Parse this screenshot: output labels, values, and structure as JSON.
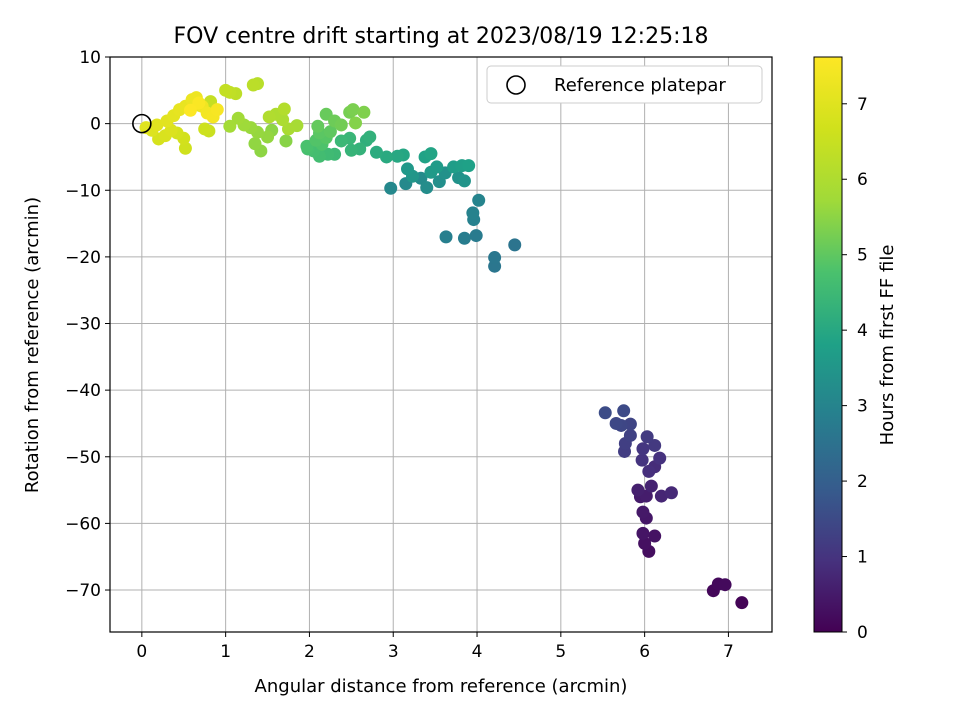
{
  "chart_data": {
    "type": "scatter",
    "title": "FOV centre drift starting at 2023/08/19 12:25:18",
    "xlabel": "Angular distance from reference (arcmin)",
    "ylabel": "Rotation from reference (arcmin)",
    "xlim": [
      -0.38,
      7.52
    ],
    "ylim": [
      -76.3,
      10
    ],
    "xticks": [
      "0",
      "1",
      "2",
      "3",
      "4",
      "5",
      "6",
      "7"
    ],
    "yticks": [
      "10",
      "0",
      "−10",
      "−20",
      "−30",
      "−40",
      "−50",
      "−60",
      "−70"
    ],
    "grid": true,
    "legend": {
      "placement": "top-right",
      "entries": [
        "Reference platepar"
      ]
    },
    "reference_point": {
      "x": 0,
      "y": 0
    },
    "colorbar": {
      "label": "Hours from first FF file",
      "range": [
        0,
        7.62
      ],
      "ticks": [
        "0",
        "1",
        "2",
        "3",
        "4",
        "5",
        "6",
        "7"
      ],
      "colormap": "viridis"
    },
    "points": [
      {
        "x": 7.16,
        "y": -71.9,
        "c": 0.05
      },
      {
        "x": 6.82,
        "y": -70.1,
        "c": 0.12
      },
      {
        "x": 6.88,
        "y": -69.1,
        "c": 0.15
      },
      {
        "x": 6.96,
        "y": -69.2,
        "c": 0.18
      },
      {
        "x": 6.05,
        "y": -64.2,
        "c": 0.25
      },
      {
        "x": 6.0,
        "y": -63.0,
        "c": 0.3
      },
      {
        "x": 6.12,
        "y": -61.9,
        "c": 0.35
      },
      {
        "x": 5.98,
        "y": -61.5,
        "c": 0.38
      },
      {
        "x": 6.02,
        "y": -59.2,
        "c": 0.42
      },
      {
        "x": 5.98,
        "y": -58.3,
        "c": 0.46
      },
      {
        "x": 5.95,
        "y": -56.0,
        "c": 0.5
      },
      {
        "x": 6.02,
        "y": -55.9,
        "c": 0.55
      },
      {
        "x": 5.92,
        "y": -55.0,
        "c": 0.6
      },
      {
        "x": 6.08,
        "y": -54.4,
        "c": 0.65
      },
      {
        "x": 6.2,
        "y": -55.9,
        "c": 0.72
      },
      {
        "x": 6.32,
        "y": -55.4,
        "c": 0.78
      },
      {
        "x": 6.12,
        "y": -51.5,
        "c": 0.85
      },
      {
        "x": 6.05,
        "y": -52.2,
        "c": 0.9
      },
      {
        "x": 6.18,
        "y": -50.2,
        "c": 0.95
      },
      {
        "x": 5.97,
        "y": -50.5,
        "c": 1.0
      },
      {
        "x": 5.98,
        "y": -48.8,
        "c": 1.05
      },
      {
        "x": 6.12,
        "y": -48.3,
        "c": 1.1
      },
      {
        "x": 6.03,
        "y": -47.0,
        "c": 1.15
      },
      {
        "x": 5.76,
        "y": -49.2,
        "c": 1.2
      },
      {
        "x": 5.77,
        "y": -48.0,
        "c": 1.25
      },
      {
        "x": 5.83,
        "y": -46.8,
        "c": 1.3
      },
      {
        "x": 5.83,
        "y": -45.1,
        "c": 1.35
      },
      {
        "x": 5.72,
        "y": -45.3,
        "c": 1.4
      },
      {
        "x": 5.66,
        "y": -45.0,
        "c": 1.45
      },
      {
        "x": 5.75,
        "y": -43.1,
        "c": 1.5
      },
      {
        "x": 5.53,
        "y": -43.4,
        "c": 1.55
      },
      {
        "x": 4.45,
        "y": -18.2,
        "c": 2.55
      },
      {
        "x": 4.21,
        "y": -21.4,
        "c": 2.6
      },
      {
        "x": 4.21,
        "y": -20.1,
        "c": 2.65
      },
      {
        "x": 3.99,
        "y": -16.8,
        "c": 2.75
      },
      {
        "x": 3.85,
        "y": -17.2,
        "c": 2.8
      },
      {
        "x": 3.63,
        "y": -17.0,
        "c": 2.85
      },
      {
        "x": 3.96,
        "y": -14.4,
        "c": 2.9
      },
      {
        "x": 3.95,
        "y": -13.4,
        "c": 2.95
      },
      {
        "x": 4.02,
        "y": -11.5,
        "c": 3.0
      },
      {
        "x": 2.97,
        "y": -9.7,
        "c": 3.1
      },
      {
        "x": 3.15,
        "y": -9.0,
        "c": 3.15
      },
      {
        "x": 3.33,
        "y": -8.2,
        "c": 3.2
      },
      {
        "x": 3.4,
        "y": -9.6,
        "c": 3.25
      },
      {
        "x": 3.55,
        "y": -8.7,
        "c": 3.3
      },
      {
        "x": 3.62,
        "y": -7.4,
        "c": 3.35
      },
      {
        "x": 3.78,
        "y": -8.1,
        "c": 3.4
      },
      {
        "x": 3.85,
        "y": -8.6,
        "c": 3.45
      },
      {
        "x": 3.23,
        "y": -7.9,
        "c": 3.5
      },
      {
        "x": 3.17,
        "y": -6.8,
        "c": 3.55
      },
      {
        "x": 3.45,
        "y": -7.3,
        "c": 3.6
      },
      {
        "x": 3.52,
        "y": -6.5,
        "c": 3.65
      },
      {
        "x": 3.72,
        "y": -6.5,
        "c": 3.7
      },
      {
        "x": 3.82,
        "y": -6.3,
        "c": 3.75
      },
      {
        "x": 3.9,
        "y": -6.3,
        "c": 3.8
      },
      {
        "x": 3.38,
        "y": -5.0,
        "c": 3.85
      },
      {
        "x": 3.45,
        "y": -4.5,
        "c": 3.9
      },
      {
        "x": 3.12,
        "y": -4.7,
        "c": 3.95
      },
      {
        "x": 3.05,
        "y": -4.9,
        "c": 4.0
      },
      {
        "x": 2.92,
        "y": -5.0,
        "c": 4.05
      },
      {
        "x": 2.8,
        "y": -4.3,
        "c": 4.1
      },
      {
        "x": 2.68,
        "y": -2.5,
        "c": 4.2
      },
      {
        "x": 2.72,
        "y": -2.0,
        "c": 4.25
      },
      {
        "x": 2.6,
        "y": -3.8,
        "c": 4.3
      },
      {
        "x": 2.5,
        "y": -4.0,
        "c": 4.35
      },
      {
        "x": 2.48,
        "y": -2.2,
        "c": 4.4
      },
      {
        "x": 2.38,
        "y": -2.6,
        "c": 4.45
      },
      {
        "x": 2.3,
        "y": -4.6,
        "c": 4.5
      },
      {
        "x": 2.22,
        "y": -4.6,
        "c": 4.55
      },
      {
        "x": 2.12,
        "y": -4.9,
        "c": 4.6
      },
      {
        "x": 2.05,
        "y": -4.1,
        "c": 4.65
      },
      {
        "x": 1.98,
        "y": -3.8,
        "c": 4.7
      },
      {
        "x": 1.97,
        "y": -3.4,
        "c": 4.75
      },
      {
        "x": 2.15,
        "y": -3.1,
        "c": 4.8
      },
      {
        "x": 2.08,
        "y": -2.5,
        "c": 4.85
      },
      {
        "x": 2.2,
        "y": -2.1,
        "c": 4.9
      },
      {
        "x": 2.12,
        "y": -1.4,
        "c": 4.95
      },
      {
        "x": 2.25,
        "y": -1.2,
        "c": 5.0
      },
      {
        "x": 2.1,
        "y": -0.4,
        "c": 5.05
      },
      {
        "x": 2.2,
        "y": 1.4,
        "c": 5.1
      },
      {
        "x": 2.3,
        "y": 0.4,
        "c": 5.15
      },
      {
        "x": 2.38,
        "y": -0.2,
        "c": 5.2
      },
      {
        "x": 2.48,
        "y": 1.7,
        "c": 5.25
      },
      {
        "x": 2.52,
        "y": 2.1,
        "c": 5.3
      },
      {
        "x": 2.65,
        "y": 1.7,
        "c": 5.35
      },
      {
        "x": 2.55,
        "y": 0.1,
        "c": 5.4
      },
      {
        "x": 1.72,
        "y": -2.6,
        "c": 5.45
      },
      {
        "x": 1.55,
        "y": -1.0,
        "c": 5.5
      },
      {
        "x": 1.42,
        "y": -4.1,
        "c": 5.52
      },
      {
        "x": 1.35,
        "y": -3.0,
        "c": 5.55
      },
      {
        "x": 1.5,
        "y": -2.0,
        "c": 5.58
      },
      {
        "x": 1.38,
        "y": -1.3,
        "c": 5.6
      },
      {
        "x": 1.3,
        "y": -0.6,
        "c": 5.65
      },
      {
        "x": 1.22,
        "y": -0.2,
        "c": 5.7
      },
      {
        "x": 1.15,
        "y": 0.8,
        "c": 5.75
      },
      {
        "x": 1.05,
        "y": -0.4,
        "c": 5.8
      },
      {
        "x": 1.85,
        "y": -0.3,
        "c": 5.85
      },
      {
        "x": 1.75,
        "y": -0.8,
        "c": 5.9
      },
      {
        "x": 1.68,
        "y": 0.6,
        "c": 5.95
      },
      {
        "x": 1.6,
        "y": 1.4,
        "c": 6.0
      },
      {
        "x": 1.52,
        "y": 1.0,
        "c": 6.05
      },
      {
        "x": 1.7,
        "y": 2.2,
        "c": 6.1
      },
      {
        "x": 1.38,
        "y": 6.0,
        "c": 6.2
      },
      {
        "x": 1.33,
        "y": 5.8,
        "c": 6.25
      },
      {
        "x": 1.12,
        "y": 4.5,
        "c": 6.3
      },
      {
        "x": 1.05,
        "y": 4.7,
        "c": 6.35
      },
      {
        "x": 1.0,
        "y": 5.0,
        "c": 6.4
      },
      {
        "x": 0.82,
        "y": 3.3,
        "c": 6.45
      },
      {
        "x": 0.7,
        "y": 2.7,
        "c": 6.5
      },
      {
        "x": 0.8,
        "y": -1.1,
        "c": 6.55
      },
      {
        "x": 0.75,
        "y": -0.8,
        "c": 6.6
      },
      {
        "x": 0.52,
        "y": -3.7,
        "c": 6.65
      },
      {
        "x": 0.5,
        "y": -2.2,
        "c": 6.7
      },
      {
        "x": 0.42,
        "y": -1.4,
        "c": 6.75
      },
      {
        "x": 0.2,
        "y": -2.3,
        "c": 6.8
      },
      {
        "x": 0.28,
        "y": -1.8,
        "c": 6.85
      },
      {
        "x": 0.35,
        "y": -1.0,
        "c": 6.9
      },
      {
        "x": 0.12,
        "y": -1.0,
        "c": 6.95
      },
      {
        "x": 0.05,
        "y": -0.6,
        "c": 7.0
      },
      {
        "x": 0.18,
        "y": -0.2,
        "c": 7.02
      },
      {
        "x": 0.3,
        "y": 0.4,
        "c": 7.05
      },
      {
        "x": 0.38,
        "y": 1.2,
        "c": 7.1
      },
      {
        "x": 0.45,
        "y": 2.1,
        "c": 7.15
      },
      {
        "x": 0.52,
        "y": 2.6,
        "c": 7.2
      },
      {
        "x": 0.6,
        "y": 3.6,
        "c": 7.25
      },
      {
        "x": 0.65,
        "y": 3.9,
        "c": 7.3
      },
      {
        "x": 0.72,
        "y": 2.6,
        "c": 7.35
      },
      {
        "x": 0.78,
        "y": 1.6,
        "c": 7.4
      },
      {
        "x": 0.85,
        "y": 1.0,
        "c": 7.45
      },
      {
        "x": 0.9,
        "y": 2.1,
        "c": 7.5
      },
      {
        "x": 0.68,
        "y": 3.1,
        "c": 7.55
      },
      {
        "x": 0.58,
        "y": 2.0,
        "c": 7.6
      }
    ]
  }
}
